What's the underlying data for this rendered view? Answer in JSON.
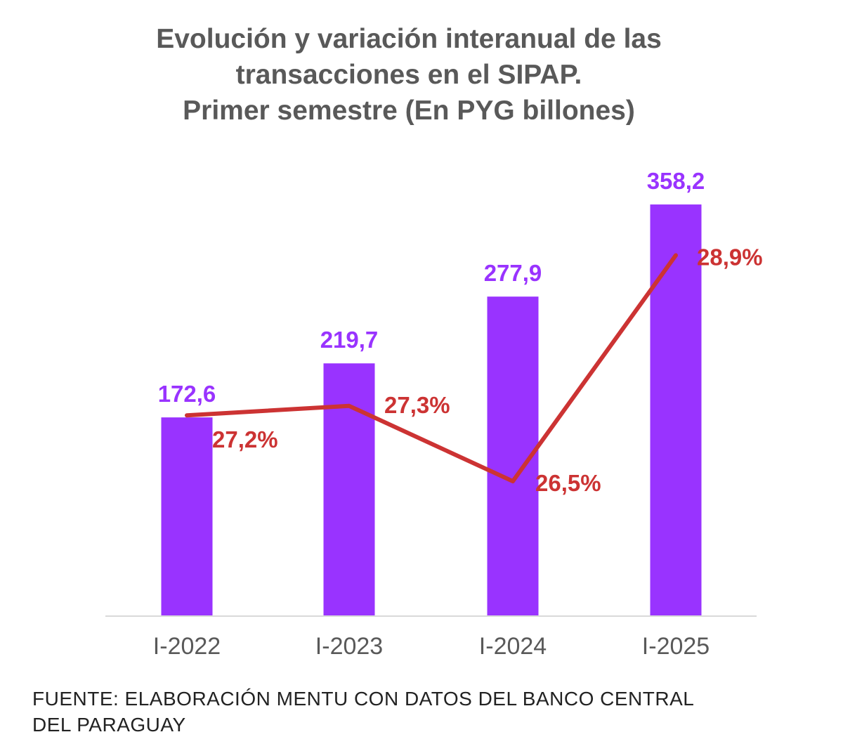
{
  "chart_data": {
    "type": "bar",
    "title_lines": [
      "Evolución y variación interanual de las",
      "transacciones en el SIPAP.",
      "Primer semestre (En PYG billones)"
    ],
    "categories": [
      "I-2022",
      "I-2023",
      "I-2024",
      "I-2025"
    ],
    "series": [
      {
        "type": "bar",
        "values": [
          172.6,
          219.7,
          277.9,
          358.2
        ],
        "labels": [
          "172,6",
          "219,7",
          "277,9",
          "358,2"
        ],
        "color": "#9933FF"
      },
      {
        "type": "line",
        "axis": "secondary",
        "values": [
          27.2,
          27.3,
          26.5,
          28.9
        ],
        "labels": [
          "27,2%",
          "27,3%",
          "26,5%",
          "28,9%"
        ],
        "color": "#CC3333"
      }
    ],
    "grid": false,
    "legend": "none"
  },
  "source": [
    "FUENTE: ELABORACIÓN MENTU CON DATOS DEL BANCO CENTRAL",
    "DEL PARAGUAY"
  ]
}
